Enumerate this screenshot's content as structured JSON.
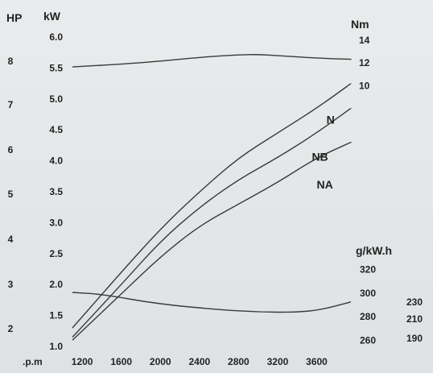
{
  "chart_data": {
    "type": "line",
    "title": "",
    "x": {
      "label": ".p.m",
      "ticks": [
        "1200",
        "1600",
        "2000",
        "2400",
        "2800",
        "3200",
        "3600"
      ],
      "range": [
        1100,
        3950
      ]
    },
    "axes": {
      "hp": {
        "label": "HP",
        "ticks": [
          "8",
          "7",
          "6",
          "5",
          "4",
          "3",
          "2"
        ]
      },
      "kw": {
        "label": "kW",
        "ticks": [
          "6.0",
          "5.5",
          "5.0",
          "4.5",
          "4.0",
          "3.5",
          "3.0",
          "2.5",
          "2.0",
          "1.5",
          "1.0"
        ],
        "range": [
          1.0,
          6.0
        ]
      },
      "nm": {
        "label": "Nm",
        "ticks": [
          "14",
          "12",
          "10"
        ],
        "range": [
          8.6,
          14.0
        ]
      },
      "gkwh": {
        "label": "g/kW.h",
        "ticks": [
          "320",
          "300",
          "280",
          "260"
        ],
        "range": [
          255,
          327
        ]
      },
      "extra": {
        "ticks": [
          "230",
          "210",
          "190"
        ]
      }
    },
    "series": [
      {
        "name": "N",
        "unit": "kW",
        "x": [
          1100,
          1600,
          2000,
          2400,
          2800,
          3200,
          3600,
          3950
        ],
        "values": [
          1.3,
          2.2,
          2.9,
          3.5,
          4.05,
          4.45,
          4.85,
          5.25
        ]
      },
      {
        "name": "NB",
        "unit": "kW",
        "x": [
          1100,
          1600,
          2000,
          2400,
          2800,
          3200,
          3600,
          3950
        ],
        "values": [
          1.15,
          2.0,
          2.7,
          3.25,
          3.7,
          4.05,
          4.45,
          4.85
        ]
      },
      {
        "name": "NA",
        "unit": "kW",
        "x": [
          1100,
          1600,
          2000,
          2400,
          2800,
          3200,
          3600,
          3950
        ],
        "values": [
          1.1,
          1.85,
          2.45,
          2.95,
          3.3,
          3.65,
          4.05,
          4.3
        ]
      },
      {
        "name": "",
        "unit": "Nm",
        "x": [
          1100,
          1600,
          2000,
          2400,
          2800,
          3000,
          3200,
          3600,
          3950
        ],
        "values": [
          11.65,
          11.9,
          12.15,
          12.5,
          12.72,
          12.75,
          12.65,
          12.42,
          12.32
        ]
      },
      {
        "name": "",
        "unit": "g/kW.h",
        "x": [
          1100,
          1400,
          2000,
          2600,
          3000,
          3400,
          3650,
          3950
        ],
        "values": [
          300.5,
          299.0,
          290.5,
          286.0,
          284.0,
          283.8,
          286.0,
          292.5
        ]
      }
    ]
  }
}
